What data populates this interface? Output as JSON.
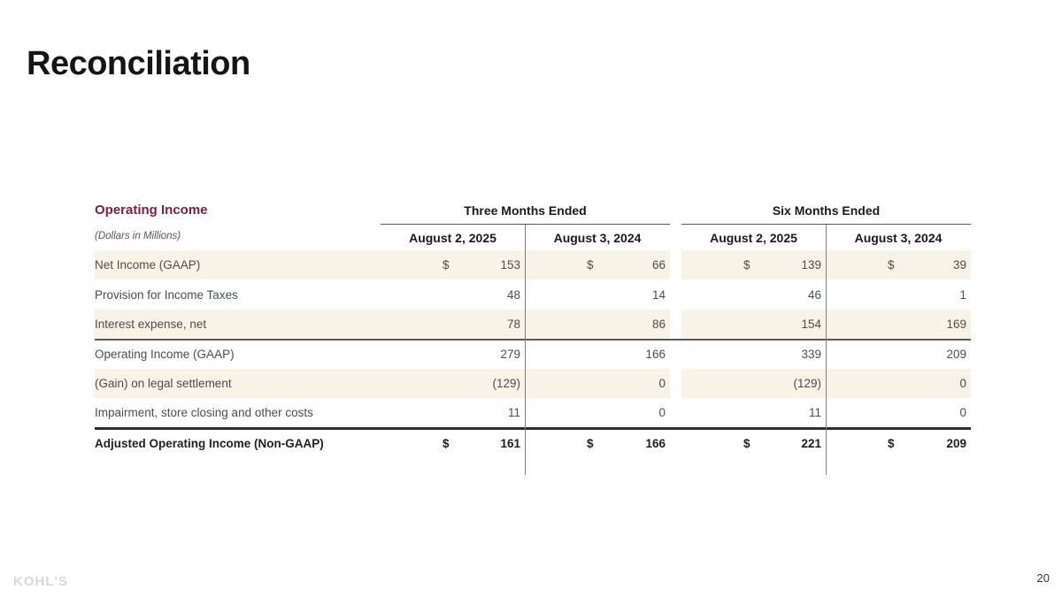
{
  "slide": {
    "title": "Reconciliation",
    "page_number": "20",
    "brand_logo": "KOHL'S"
  },
  "colors": {
    "accent_maroon": "#7B1F3D",
    "row_stripe": "#F9F3E7",
    "body_text": "#4d4d4d",
    "logo_gray": "#D8D8D8"
  },
  "table": {
    "section_title": "Operating Income",
    "units_note": "(Dollars in Millions)",
    "currency_symbol": "$",
    "column_groups": [
      {
        "label": "Three Months Ended",
        "columns": [
          "August 2, 2025",
          "August 3, 2024"
        ]
      },
      {
        "label": "Six Months Ended",
        "columns": [
          "August 2, 2025",
          "August 3, 2024"
        ]
      }
    ],
    "rows": [
      {
        "label": "Net Income (GAAP)",
        "dollar_sign": true,
        "values": [
          "153",
          "66",
          "139",
          "39"
        ]
      },
      {
        "label": "Provision for Income Taxes",
        "dollar_sign": false,
        "values": [
          "48",
          "14",
          "46",
          "1"
        ]
      },
      {
        "label": "Interest expense, net",
        "dollar_sign": false,
        "values": [
          "78",
          "86",
          "154",
          "169"
        ]
      },
      {
        "label": "Operating Income (GAAP)",
        "dollar_sign": false,
        "values": [
          "279",
          "166",
          "339",
          "209"
        ]
      },
      {
        "label": "(Gain) on legal settlement",
        "dollar_sign": false,
        "values": [
          "(129)",
          "0",
          "(129)",
          "0"
        ]
      },
      {
        "label": "Impairment, store closing and other costs",
        "dollar_sign": false,
        "values": [
          "11",
          "0",
          "11",
          "0"
        ]
      },
      {
        "label": "Adjusted Operating Income (Non-GAAP)",
        "dollar_sign": true,
        "values": [
          "161",
          "166",
          "221",
          "209"
        ]
      }
    ]
  }
}
